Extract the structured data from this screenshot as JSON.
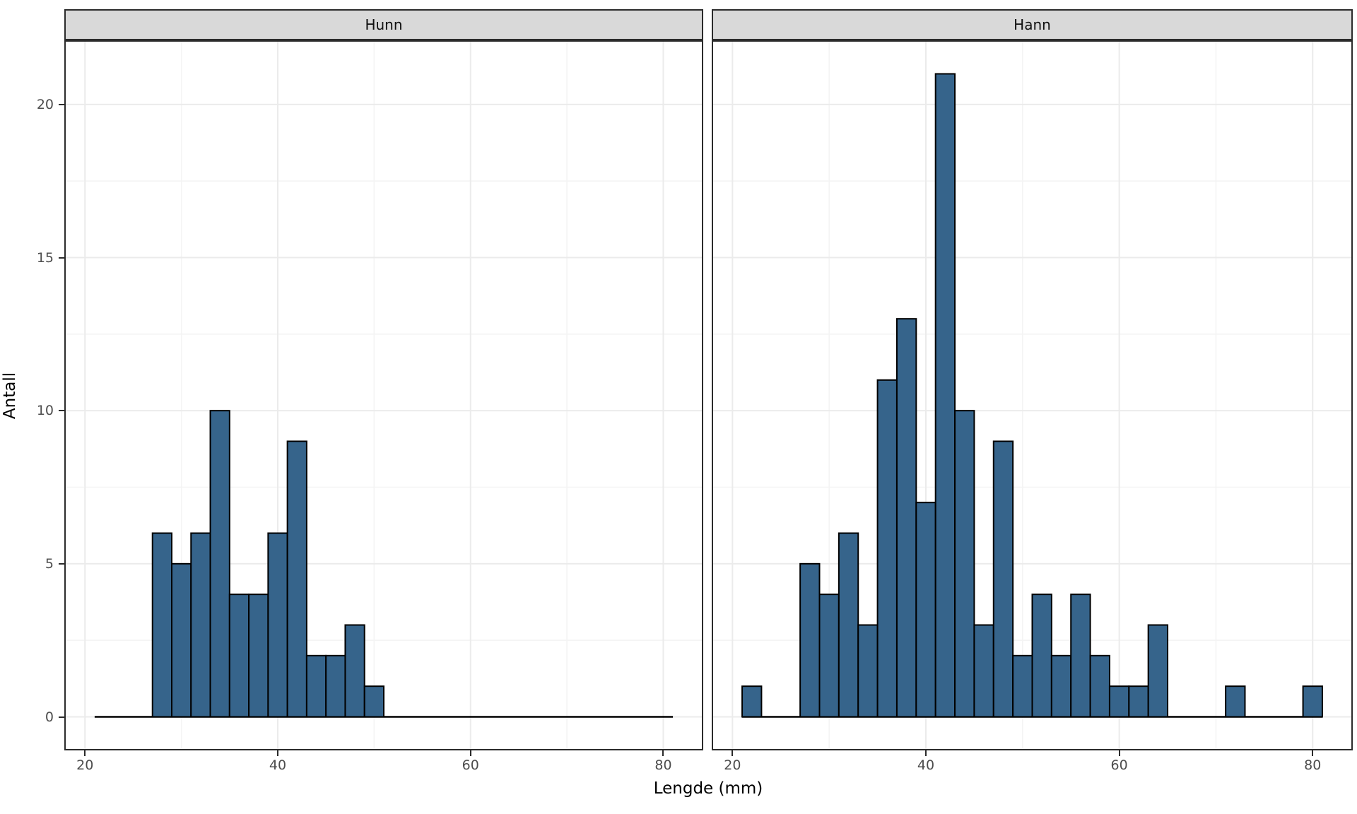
{
  "chart_data": {
    "type": "bar",
    "subtype": "faceted-histogram",
    "title": "",
    "xlabel": "Lengde (mm)",
    "ylabel": "Antall",
    "bin_width": 2,
    "bin_range": [
      21,
      81
    ],
    "bin_starts": [
      21,
      23,
      25,
      27,
      29,
      31,
      33,
      35,
      37,
      39,
      41,
      43,
      45,
      47,
      49,
      51,
      53,
      55,
      57,
      59,
      61,
      63,
      65,
      67,
      69,
      71,
      73,
      75,
      77,
      79
    ],
    "facets": [
      {
        "label": "Hunn",
        "counts": [
          0,
          0,
          0,
          6,
          5,
          6,
          10,
          4,
          4,
          6,
          9,
          2,
          2,
          3,
          1,
          0,
          0,
          0,
          0,
          0,
          0,
          0,
          0,
          0,
          0,
          0,
          0,
          0,
          0,
          0
        ]
      },
      {
        "label": "Hann",
        "counts": [
          1,
          0,
          0,
          5,
          4,
          6,
          3,
          11,
          13,
          7,
          21,
          10,
          3,
          9,
          2,
          4,
          2,
          4,
          2,
          1,
          1,
          3,
          0,
          0,
          0,
          1,
          0,
          0,
          0,
          1
        ]
      }
    ],
    "x_ticks": [
      20,
      40,
      60,
      80
    ],
    "x_minor_ticks": [
      30,
      50,
      70
    ],
    "y_ticks": [
      0,
      5,
      10,
      15,
      20
    ],
    "y_minor_ticks": [
      2.5,
      7.5,
      12.5,
      17.5
    ],
    "xlim": [
      18,
      84
    ],
    "ylim": [
      -1.05,
      22.05
    ],
    "grid": "on",
    "legend_position": "none",
    "colors": {
      "bar_fill": "#36648B",
      "bar_stroke": "#000000",
      "strip_bg": "#D9D9D9",
      "panel_border": "#2B2B2B",
      "grid_major": "#EBEBEB",
      "grid_minor": "#F4F4F4",
      "axis_text": "#4D4D4D",
      "axis_title": "#000000"
    }
  }
}
